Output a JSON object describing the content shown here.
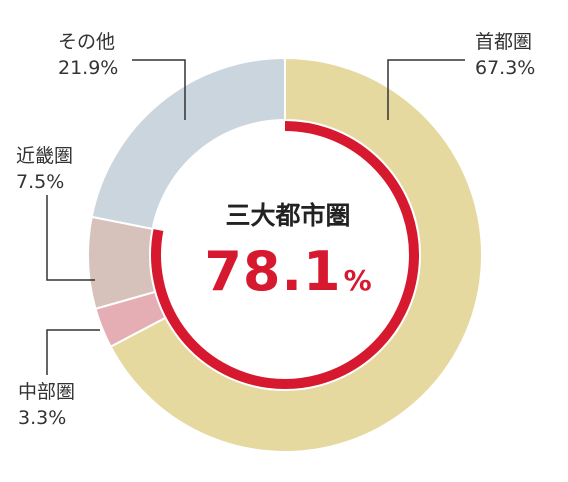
{
  "chart_data": {
    "type": "pie",
    "style": "donut",
    "center": {
      "title": "三大都市圏",
      "value": "78.1",
      "unit": "%"
    },
    "slices": [
      {
        "label": "首都圏",
        "value": 67.3,
        "value_text": "67.3%",
        "color": "#e6d9a0"
      },
      {
        "label": "中部圏",
        "value": 3.3,
        "value_text": "3.3%",
        "color": "#e4aeb4"
      },
      {
        "label": "近畿圏",
        "value": 7.5,
        "value_text": "7.5%",
        "color": "#d6c2ba"
      },
      {
        "label": "その他",
        "value": 21.9,
        "value_text": "21.9%",
        "color": "#cbd5de"
      }
    ],
    "highlight_ring": {
      "label": "三大都市圏",
      "value": 78.1,
      "color": "#d6192f"
    }
  }
}
